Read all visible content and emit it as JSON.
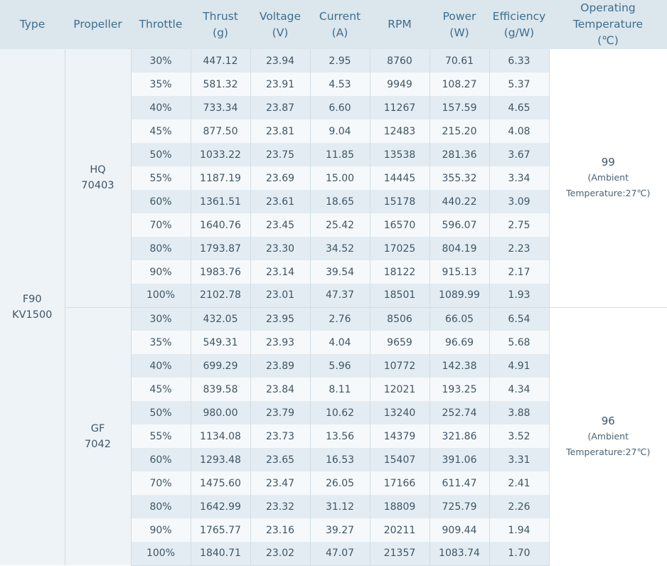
{
  "headers": {
    "type": "Type",
    "propeller": "Propeller",
    "throttle": "Throttle",
    "thrust": [
      "Thrust",
      "(g)"
    ],
    "voltage": [
      "Voltage",
      "(V)"
    ],
    "current": [
      "Current",
      "(A)"
    ],
    "rpm": "RPM",
    "power": [
      "Power",
      "(W)"
    ],
    "efficiency": [
      "Efficiency",
      "(g/W)"
    ],
    "temperature": [
      "Operating",
      "Temperature",
      "(℃)"
    ]
  },
  "motor": {
    "type": [
      "F90",
      "KV1500"
    ]
  },
  "groups": [
    {
      "propeller": [
        "HQ",
        "70403"
      ],
      "temperature": "99",
      "temperature_note": [
        "(Ambient",
        "Temperature:27℃)"
      ],
      "rows": [
        [
          "30%",
          "447.12",
          "23.94",
          "2.95",
          "8760",
          "70.61",
          "6.33"
        ],
        [
          "35%",
          "581.32",
          "23.91",
          "4.53",
          "9949",
          "108.27",
          "5.37"
        ],
        [
          "40%",
          "733.34",
          "23.87",
          "6.60",
          "11267",
          "157.59",
          "4.65"
        ],
        [
          "45%",
          "877.50",
          "23.81",
          "9.04",
          "12483",
          "215.20",
          "4.08"
        ],
        [
          "50%",
          "1033.22",
          "23.75",
          "11.85",
          "13538",
          "281.36",
          "3.67"
        ],
        [
          "55%",
          "1187.19",
          "23.69",
          "15.00",
          "14445",
          "355.32",
          "3.34"
        ],
        [
          "60%",
          "1361.51",
          "23.61",
          "18.65",
          "15178",
          "440.22",
          "3.09"
        ],
        [
          "70%",
          "1640.76",
          "23.45",
          "25.42",
          "16570",
          "596.07",
          "2.75"
        ],
        [
          "80%",
          "1793.87",
          "23.30",
          "34.52",
          "17025",
          "804.19",
          "2.23"
        ],
        [
          "90%",
          "1983.76",
          "23.14",
          "39.54",
          "18122",
          "915.13",
          "2.17"
        ],
        [
          "100%",
          "2102.78",
          "23.01",
          "47.37",
          "18501",
          "1089.99",
          "1.93"
        ]
      ]
    },
    {
      "propeller": [
        "GF",
        "7042"
      ],
      "temperature": "96",
      "temperature_note": [
        "(Ambient",
        "Temperature:27℃)"
      ],
      "rows": [
        [
          "30%",
          "432.05",
          "23.95",
          "2.76",
          "8506",
          "66.05",
          "6.54"
        ],
        [
          "35%",
          "549.31",
          "23.93",
          "4.04",
          "9659",
          "96.69",
          "5.68"
        ],
        [
          "40%",
          "699.29",
          "23.89",
          "5.96",
          "10772",
          "142.38",
          "4.91"
        ],
        [
          "45%",
          "839.58",
          "23.84",
          "8.11",
          "12021",
          "193.25",
          "4.34"
        ],
        [
          "50%",
          "980.00",
          "23.79",
          "10.62",
          "13240",
          "252.74",
          "3.88"
        ],
        [
          "55%",
          "1134.08",
          "23.73",
          "13.56",
          "14379",
          "321.86",
          "3.52"
        ],
        [
          "60%",
          "1293.48",
          "23.65",
          "16.53",
          "15407",
          "391.06",
          "3.31"
        ],
        [
          "70%",
          "1475.60",
          "23.47",
          "26.05",
          "17166",
          "611.47",
          "2.41"
        ],
        [
          "80%",
          "1642.99",
          "23.32",
          "31.12",
          "18809",
          "725.79",
          "2.26"
        ],
        [
          "90%",
          "1765.77",
          "23.16",
          "39.27",
          "20211",
          "909.44",
          "1.94"
        ],
        [
          "100%",
          "1840.71",
          "23.02",
          "47.07",
          "21357",
          "1083.74",
          "1.70"
        ]
      ]
    }
  ]
}
